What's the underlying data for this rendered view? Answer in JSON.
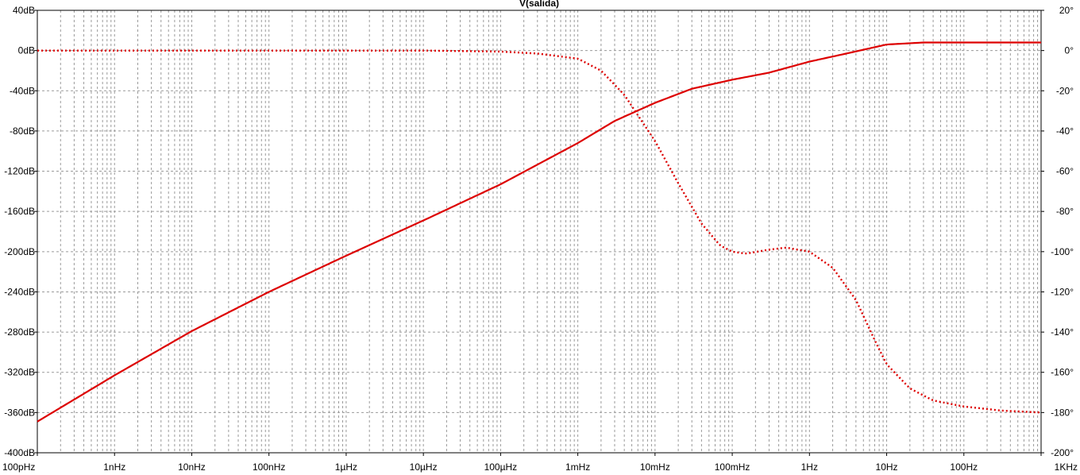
{
  "chart_data": {
    "type": "line",
    "title": "V(salida)",
    "colors": {
      "trace": "#dd0000",
      "grid": "#9a9a9a",
      "axis": "#000000",
      "background": "#ffffff"
    },
    "x_scale": "log",
    "x_range_hz": [
      1e-10,
      1000
    ],
    "x_ticks": [
      {
        "value": 1e-10,
        "label": "100pHz"
      },
      {
        "value": 1e-09,
        "label": "1nHz"
      },
      {
        "value": 1e-08,
        "label": "10nHz"
      },
      {
        "value": 1e-07,
        "label": "100nHz"
      },
      {
        "value": 1e-06,
        "label": "1µHz"
      },
      {
        "value": 1e-05,
        "label": "10µHz"
      },
      {
        "value": 0.0001,
        "label": "100µHz"
      },
      {
        "value": 0.001,
        "label": "1mHz"
      },
      {
        "value": 0.01,
        "label": "10mHz"
      },
      {
        "value": 0.1,
        "label": "100mHz"
      },
      {
        "value": 1,
        "label": "1Hz"
      },
      {
        "value": 10,
        "label": "10Hz"
      },
      {
        "value": 100,
        "label": "100Hz"
      },
      {
        "value": 1000,
        "label": "1KHz"
      }
    ],
    "y_left_range_db": [
      -400,
      40
    ],
    "y_left_ticks": [
      {
        "value": 40,
        "label": "40dB"
      },
      {
        "value": 0,
        "label": "0dB"
      },
      {
        "value": -40,
        "label": "-40dB"
      },
      {
        "value": -80,
        "label": "-80dB"
      },
      {
        "value": -120,
        "label": "-120dB"
      },
      {
        "value": -160,
        "label": "-160dB"
      },
      {
        "value": -200,
        "label": "-200dB"
      },
      {
        "value": -240,
        "label": "-240dB"
      },
      {
        "value": -280,
        "label": "-280dB"
      },
      {
        "value": -320,
        "label": "-320dB"
      },
      {
        "value": -360,
        "label": "-360dB"
      },
      {
        "value": -400,
        "label": "-400dB"
      }
    ],
    "y_right_range_deg": [
      -200,
      20
    ],
    "y_right_ticks": [
      {
        "value": 20,
        "label": "20°"
      },
      {
        "value": 0,
        "label": "0°"
      },
      {
        "value": -20,
        "label": "-20°"
      },
      {
        "value": -40,
        "label": "-40°"
      },
      {
        "value": -60,
        "label": "-60°"
      },
      {
        "value": -80,
        "label": "-80°"
      },
      {
        "value": -100,
        "label": "-100°"
      },
      {
        "value": -120,
        "label": "-120°"
      },
      {
        "value": -140,
        "label": "-140°"
      },
      {
        "value": -160,
        "label": "-160°"
      },
      {
        "value": -180,
        "label": "-180°"
      },
      {
        "value": -200,
        "label": "-200°"
      }
    ],
    "grid": true,
    "series": [
      {
        "kind": "magnitude",
        "axis": "left",
        "style": "solid",
        "x": [
          1e-10,
          1e-09,
          1e-08,
          1e-07,
          1e-06,
          1e-05,
          0.0001,
          0.001,
          0.003,
          0.01,
          0.03,
          0.1,
          0.3,
          1,
          3,
          10,
          30,
          100,
          1000
        ],
        "y": [
          -369,
          -323,
          -279,
          -240,
          -204,
          -169,
          -133,
          -92,
          -70,
          -52,
          -38,
          -29,
          -22,
          -11,
          -3,
          6,
          8,
          8,
          8
        ]
      },
      {
        "kind": "phase",
        "axis": "right",
        "style": "dotted",
        "x": [
          1e-10,
          1e-05,
          0.0001,
          0.0003,
          0.001,
          0.002,
          0.004,
          0.01,
          0.02,
          0.04,
          0.07,
          0.1,
          0.15,
          0.3,
          0.5,
          1,
          2,
          4,
          7,
          10,
          20,
          40,
          100,
          300,
          1000
        ],
        "y": [
          0,
          0,
          -0.5,
          -1.5,
          -4,
          -10,
          -22,
          -45,
          -66,
          -86,
          -97,
          -100,
          -101,
          -99,
          -98,
          -100,
          -108,
          -124,
          -144,
          -156,
          -168,
          -174,
          -177,
          -179,
          -180
        ]
      }
    ]
  }
}
